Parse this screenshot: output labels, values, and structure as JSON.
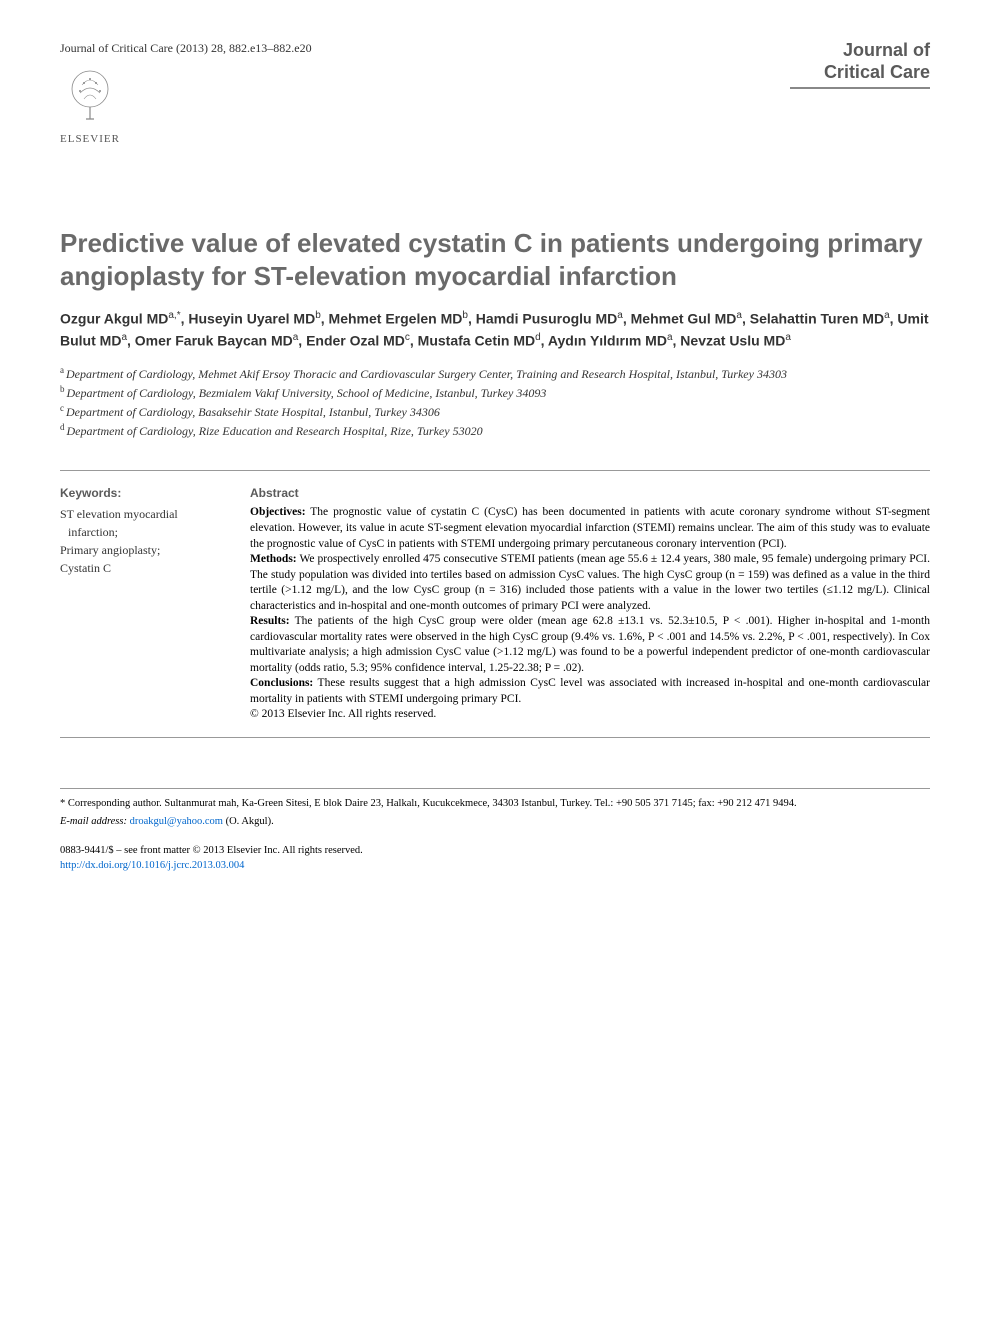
{
  "header": {
    "journal_ref": "Journal of Critical Care (2013) 28, 882.e13–882.e20",
    "journal_name_line1": "Journal of",
    "journal_name_line2": "Critical Care",
    "publisher": "ELSEVIER"
  },
  "article": {
    "title": "Predictive value of elevated cystatin C in patients undergoing primary angioplasty for ST-elevation myocardial infarction",
    "authors_html": "Ozgur Akgul MD<sup>a,*</sup>, Huseyin Uyarel MD<sup>b</sup>, Mehmet Ergelen MD<sup>b</sup>, Hamdi Pusuroglu MD<sup>a</sup>, Mehmet Gul MD<sup>a</sup>, Selahattin Turen MD<sup>a</sup>, Umit Bulut MD<sup>a</sup>, Omer Faruk Baycan MD<sup>a</sup>, Ender Ozal MD<sup>c</sup>, Mustafa Cetin MD<sup>d</sup>, Aydın Yıldırım MD<sup>a</sup>, Nevzat Uslu MD<sup>a</sup>",
    "affiliations": [
      {
        "sup": "a",
        "text": "Department of Cardiology, Mehmet Akif Ersoy Thoracic and Cardiovascular Surgery Center, Training and Research Hospital, Istanbul, Turkey 34303"
      },
      {
        "sup": "b",
        "text": "Department of Cardiology, Bezmialem Vakıf University, School of Medicine, Istanbul, Turkey 34093"
      },
      {
        "sup": "c",
        "text": "Department of Cardiology, Basaksehir State Hospital, Istanbul, Turkey 34306"
      },
      {
        "sup": "d",
        "text": "Department of Cardiology, Rize Education and Research Hospital, Rize, Turkey 53020"
      }
    ]
  },
  "keywords": {
    "label": "Keywords:",
    "items": [
      "ST elevation myocardial infarction;",
      "Primary angioplasty;",
      "Cystatin C"
    ]
  },
  "abstract": {
    "label": "Abstract",
    "sections": [
      {
        "heading": "Objectives:",
        "text": "The prognostic value of cystatin C (CysC) has been documented in patients with acute coronary syndrome without ST-segment elevation. However, its value in acute ST-segment elevation myocardial infarction (STEMI) remains unclear. The aim of this study was to evaluate the prognostic value of CysC in patients with STEMI undergoing primary percutaneous coronary intervention (PCI)."
      },
      {
        "heading": "Methods:",
        "text": "We prospectively enrolled 475 consecutive STEMI patients (mean age 55.6 ± 12.4 years, 380 male, 95 female) undergoing primary PCI. The study population was divided into tertiles based on admission CysC values. The high CysC group (n = 159) was defined as a value in the third tertile (>1.12 mg/L), and the low CysC group (n = 316) included those patients with a value in the lower two tertiles (≤1.12 mg/L). Clinical characteristics and in-hospital and one-month outcomes of primary PCI were analyzed."
      },
      {
        "heading": "Results:",
        "text": "The patients of the high CysC group were older (mean age 62.8 ±13.1 vs. 52.3±10.5, P < .001). Higher in-hospital and 1-month cardiovascular mortality rates were observed in the high CysC group (9.4% vs. 1.6%, P < .001 and 14.5% vs. 2.2%, P < .001, respectively). In Cox multivariate analysis; a high admission CysC value (>1.12 mg/L) was found to be a powerful independent predictor of one-month cardiovascular mortality (odds ratio, 5.3; 95% confidence interval, 1.25-22.38; P = .02)."
      },
      {
        "heading": "Conclusions:",
        "text": "These results suggest that a high admission CysC level was associated with increased in-hospital and one-month cardiovascular mortality in patients with STEMI undergoing primary PCI."
      }
    ],
    "copyright": "© 2013 Elsevier Inc. All rights reserved."
  },
  "footer": {
    "corresponding": "* Corresponding author. Sultanmurat mah, Ka-Green Sitesi, E blok Daire 23, Halkalı, Kucukcekmece, 34303 Istanbul, Turkey. Tel.: +90 505 371 7145; fax: +90 212 471 9494.",
    "email_label": "E-mail address:",
    "email": "droakgul@yahoo.com",
    "email_author": "(O. Akgul).",
    "issn_line": "0883-9441/$ – see front matter © 2013 Elsevier Inc. All rights reserved.",
    "doi": "http://dx.doi.org/10.1016/j.jcrc.2013.03.004"
  },
  "colors": {
    "title_gray": "#6a6a6a",
    "text": "#000000",
    "link": "#0066cc",
    "rule": "#999999"
  }
}
